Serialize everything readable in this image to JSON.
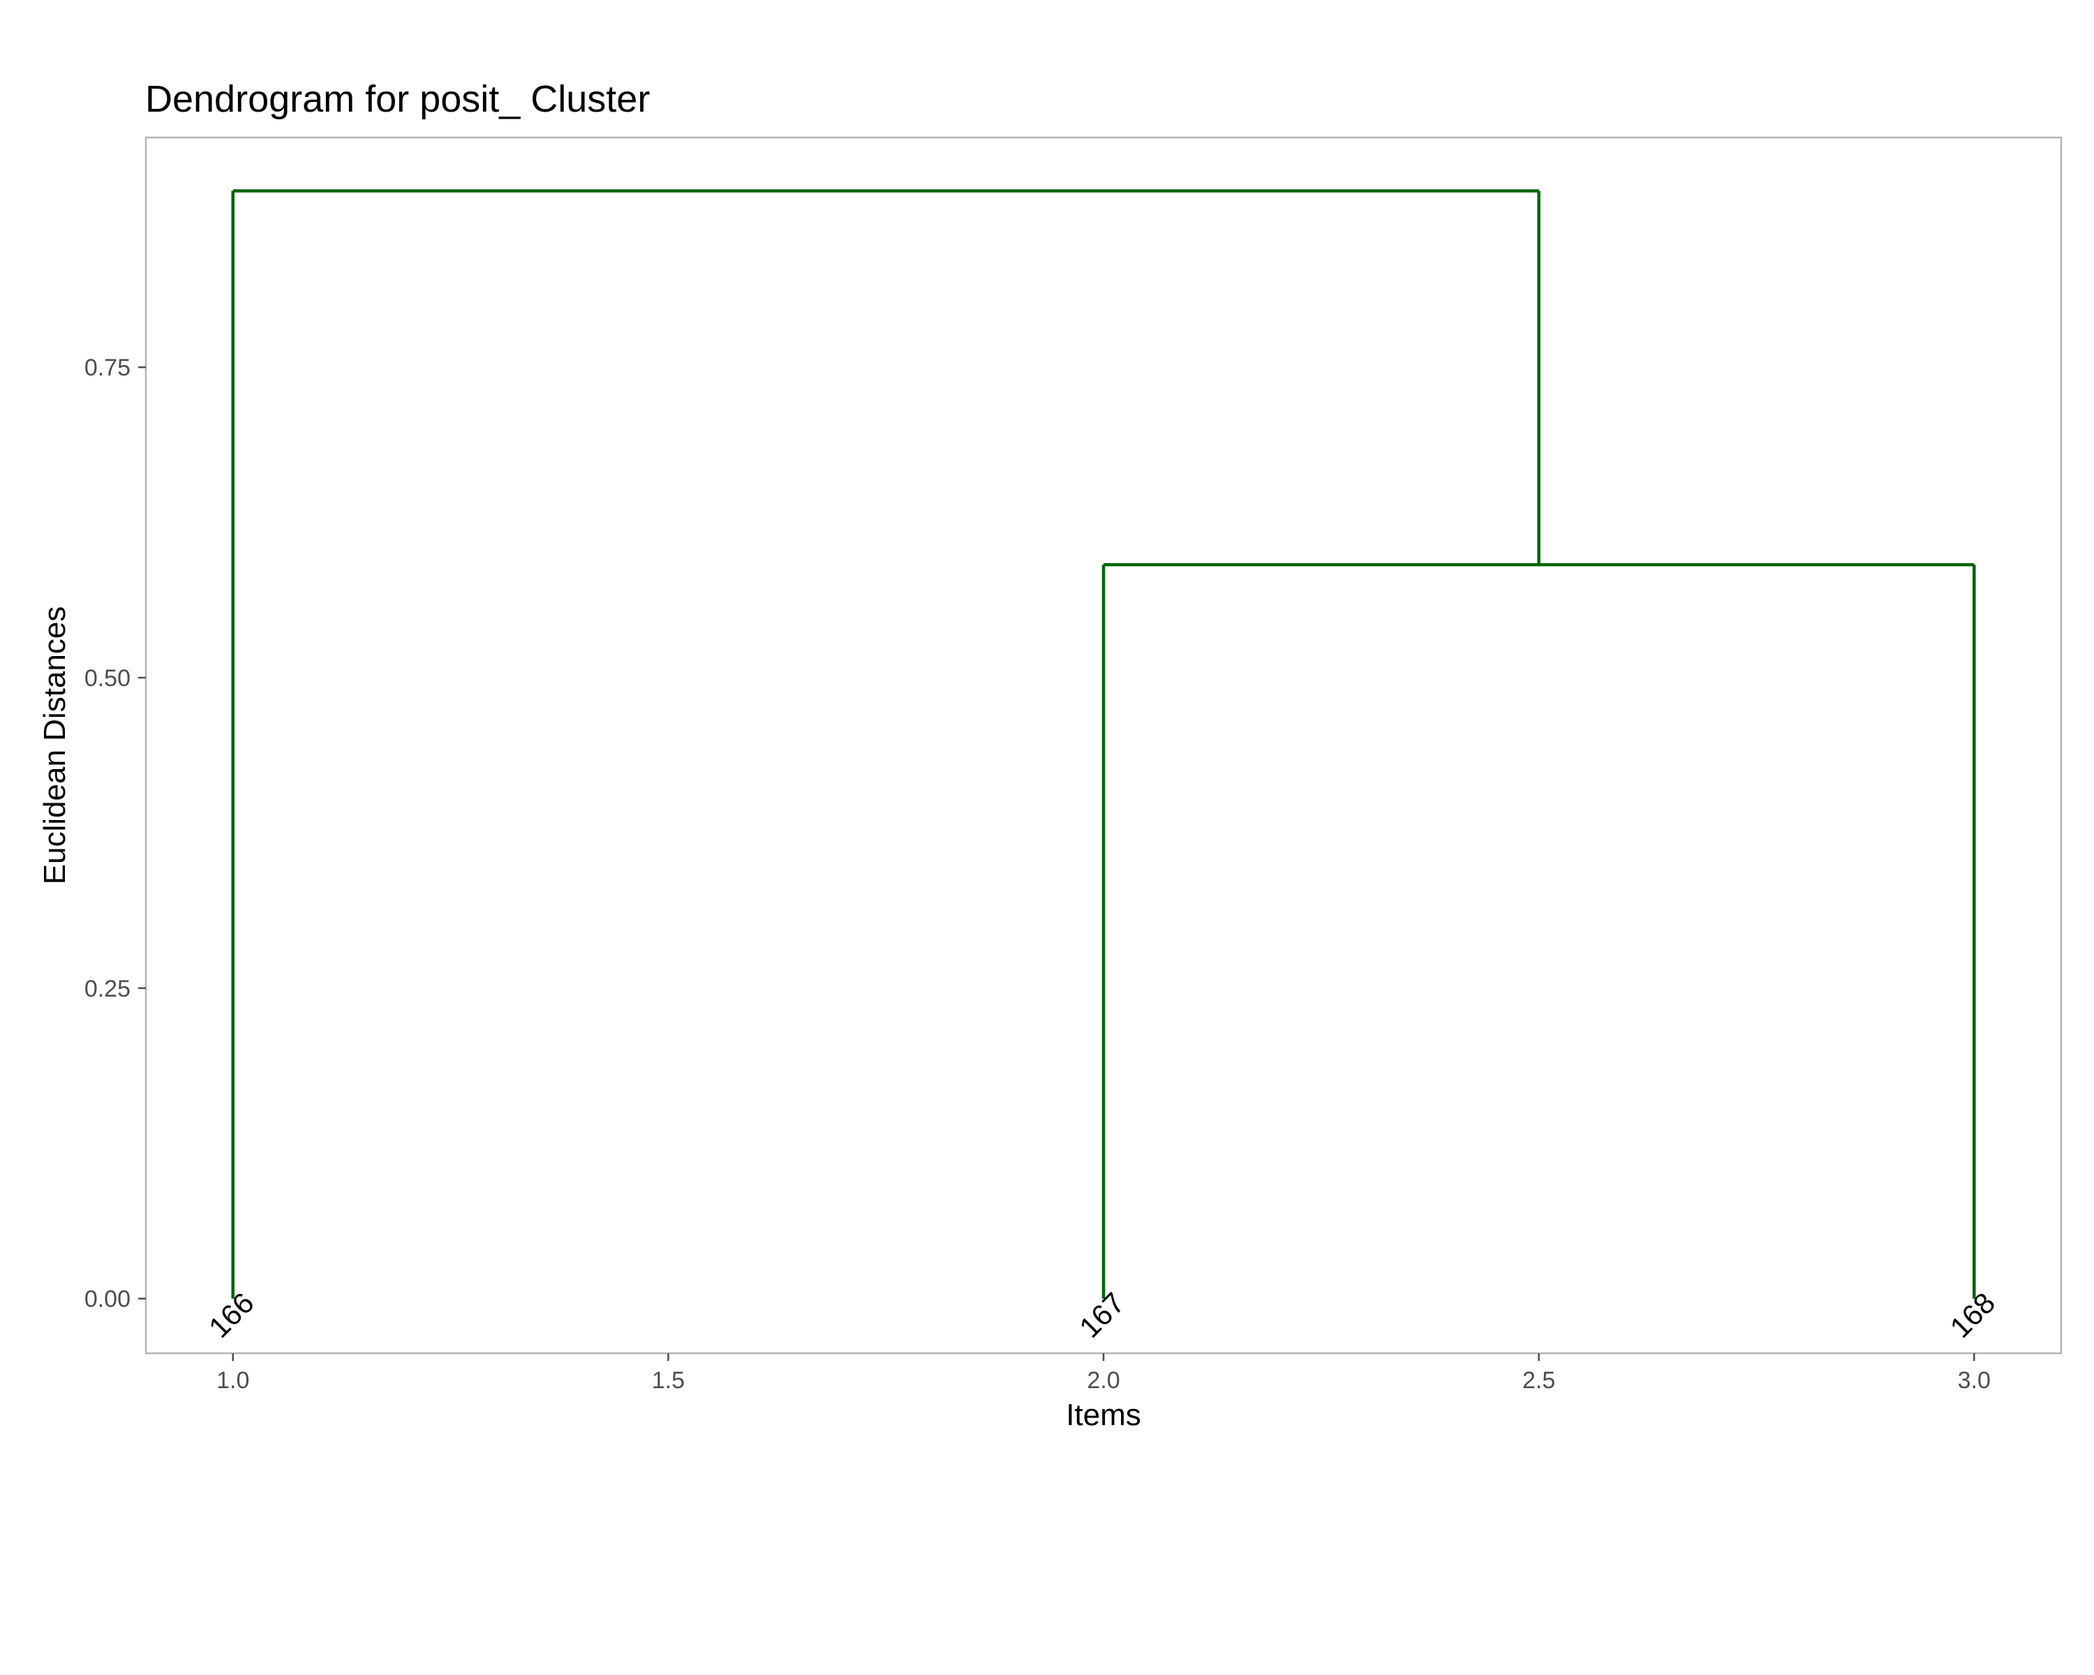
{
  "chart_data": {
    "type": "dendrogram",
    "title": "Dendrogram for posit_ Cluster",
    "xlabel": "Items",
    "ylabel": "Euclidean Distances",
    "xlim": [
      0.9,
      3.1
    ],
    "ylim": [
      -0.044,
      0.935
    ],
    "x_ticks": [
      1.0,
      1.5,
      2.0,
      2.5,
      3.0
    ],
    "x_tick_labels": [
      "1.0",
      "1.5",
      "2.0",
      "2.5",
      "3.0"
    ],
    "y_ticks": [
      0.0,
      0.25,
      0.5,
      0.75
    ],
    "y_tick_labels": [
      "0.00",
      "0.25",
      "0.50",
      "0.75"
    ],
    "grid": false,
    "leaves": [
      {
        "label": "166",
        "x": 1.0
      },
      {
        "label": "167",
        "x": 2.0
      },
      {
        "label": "168",
        "x": 3.0
      }
    ],
    "segments": [
      {
        "x": 1.0,
        "xend": 1.0,
        "y": 0.0,
        "yend": 0.892
      },
      {
        "x": 1.0,
        "xend": 2.5,
        "y": 0.892,
        "yend": 0.892
      },
      {
        "x": 2.5,
        "xend": 2.5,
        "y": 0.892,
        "yend": 0.591
      },
      {
        "x": 2.0,
        "xend": 3.0,
        "y": 0.591,
        "yend": 0.591
      },
      {
        "x": 2.0,
        "xend": 2.0,
        "y": 0.591,
        "yend": 0.0
      },
      {
        "x": 3.0,
        "xend": 3.0,
        "y": 0.591,
        "yend": 0.0
      }
    ],
    "line_color": "#006400"
  }
}
